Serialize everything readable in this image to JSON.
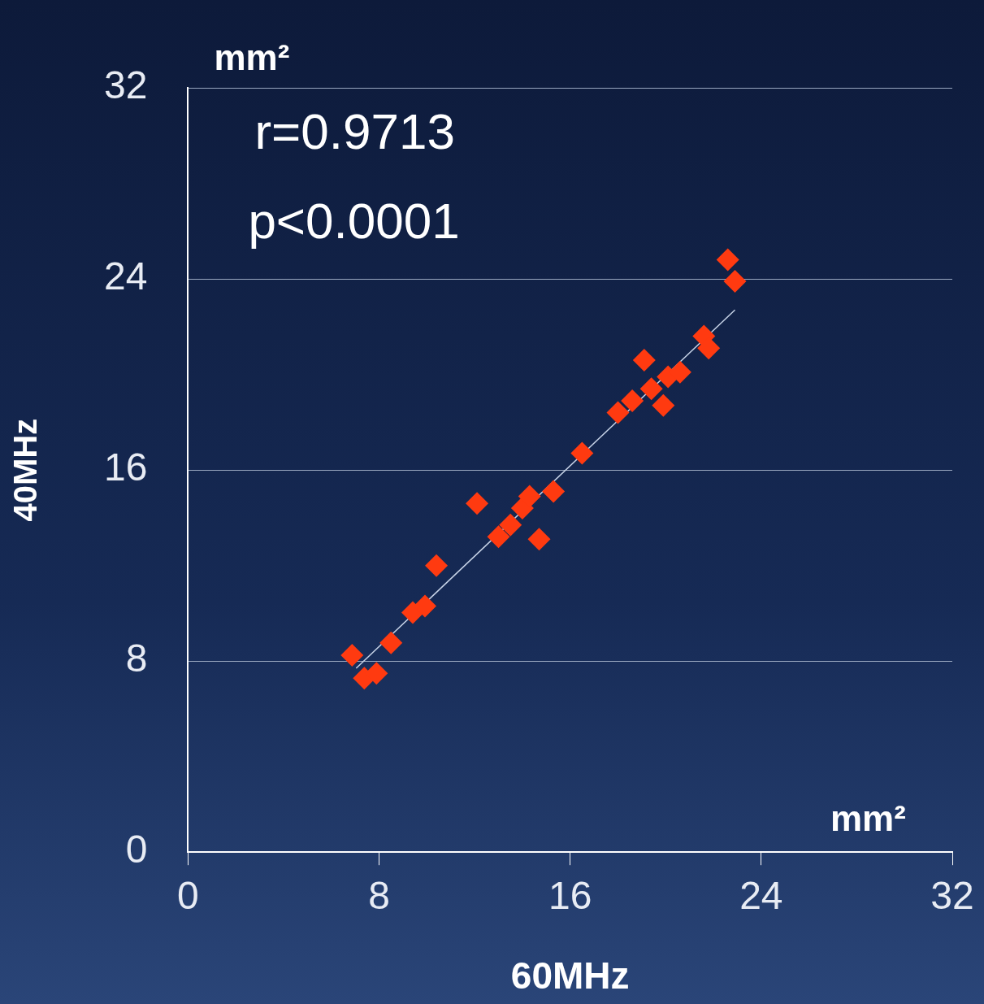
{
  "chart_data": {
    "type": "scatter",
    "xlabel": "60MHz",
    "ylabel": "40MHz",
    "annotations": [
      "mm²",
      "mm²",
      "r=0.9713",
      "p<0.0001"
    ],
    "series": [
      {
        "color": "#ff3a10",
        "x": [
          6.87,
          7.38,
          7.89,
          8.5,
          9.41,
          9.92,
          10.4,
          12.1,
          13.0,
          13.5,
          14.0,
          14.3,
          14.7,
          15.3,
          16.5,
          18.0,
          18.6,
          19.1,
          19.4,
          19.9,
          20.1,
          20.6,
          21.6,
          21.8,
          22.6,
          22.9
        ],
        "values": [
          8.24,
          7.28,
          7.49,
          8.76,
          10.03,
          10.3,
          12.0,
          14.6,
          13.2,
          13.7,
          14.4,
          14.9,
          13.1,
          15.1,
          16.7,
          18.4,
          18.9,
          20.6,
          19.4,
          18.7,
          19.9,
          20.1,
          21.6,
          21.1,
          24.8,
          23.9
        ]
      },
      {
        "type": "line",
        "marker": "none",
        "color": "#c8d4e8",
        "x": [
          7.04,
          22.9
        ],
        "values": [
          7.7,
          22.7
        ]
      }
    ],
    "xlim": [
      0,
      32
    ],
    "xticks": [
      0,
      8,
      16,
      24,
      32
    ],
    "ylim": [
      0,
      32
    ],
    "yticks": [
      0,
      8,
      16,
      24,
      32
    ],
    "grid": "y",
    "marker": "diamond",
    "legend": false
  }
}
